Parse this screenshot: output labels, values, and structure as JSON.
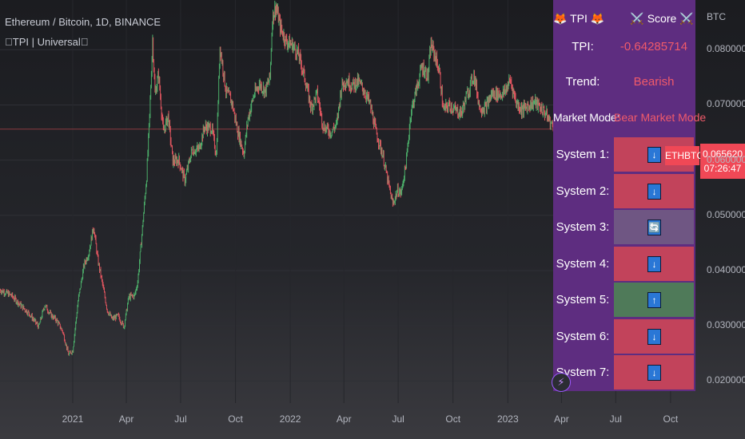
{
  "header": {
    "title": "Ethereum / Bitcoin, 1D, BINANCE",
    "indicator": "\u0000TPI | Universal\u0000"
  },
  "panel": {
    "head_left": "🦊 TPI 🦊",
    "head_right": "⚔️ Score ⚔️",
    "tpi_label": "TPI:",
    "tpi_value": "-0.64285714",
    "trend_label": "Trend:",
    "trend_value": "Bearish",
    "mode_label": "Market Mode:",
    "mode_value": "Bear Market Mode",
    "systems": [
      {
        "label": "System 1:",
        "signal": "↓",
        "state": "bear"
      },
      {
        "label": "System 2:",
        "signal": "↓",
        "state": "bear"
      },
      {
        "label": "System 3:",
        "signal": "🔄",
        "state": "neutral"
      },
      {
        "label": "System 4:",
        "signal": "↓",
        "state": "bear"
      },
      {
        "label": "System 5:",
        "signal": "↑",
        "state": "bull"
      },
      {
        "label": "System 6:",
        "signal": "↓",
        "state": "bear"
      },
      {
        "label": "System 7:",
        "signal": "↓",
        "state": "bear"
      }
    ],
    "colors": {
      "bg": "#5e2d80",
      "bear": "#c2435b",
      "bull": "#4f7a59",
      "neutral": "#6f5683",
      "bear_text": "#f05a6a"
    }
  },
  "price_badge": {
    "symbol": "ETHBTC",
    "price": "0.065620",
    "countdown": "07:26:47"
  },
  "chart_data": {
    "type": "line",
    "title": "Ethereum / Bitcoin, 1D, BINANCE",
    "ylabel": "BTC",
    "ylim": [
      0.016,
      0.089
    ],
    "x_range": [
      "2020-09-01",
      "2023-11-01"
    ],
    "y_ticks": [
      "0.080000",
      "0.070000",
      "0.060000",
      "0.050000",
      "0.040000",
      "0.030000",
      "0.020000"
    ],
    "y_tick_values": [
      0.08,
      0.07,
      0.06,
      0.05,
      0.04,
      0.03,
      0.02
    ],
    "x_ticks": [
      {
        "label": "2021",
        "date": "2021-01-01"
      },
      {
        "label": "Apr",
        "date": "2021-04-01"
      },
      {
        "label": "Jul",
        "date": "2021-07-01"
      },
      {
        "label": "Oct",
        "date": "2021-10-01"
      },
      {
        "label": "2022",
        "date": "2022-01-01"
      },
      {
        "label": "Apr",
        "date": "2022-04-01"
      },
      {
        "label": "Jul",
        "date": "2022-07-01"
      },
      {
        "label": "Oct",
        "date": "2022-10-01"
      },
      {
        "label": "2023",
        "date": "2023-01-01"
      },
      {
        "label": "Apr",
        "date": "2023-04-01"
      },
      {
        "label": "Jul",
        "date": "2023-07-01"
      },
      {
        "label": "Oct",
        "date": "2023-10-01"
      }
    ],
    "current_price": 0.06562,
    "series": [
      {
        "points": [
          [
            "2020-09-01",
            0.0365
          ],
          [
            "2020-09-20",
            0.0355
          ],
          [
            "2020-10-05",
            0.0338
          ],
          [
            "2020-10-20",
            0.0322
          ],
          [
            "2020-11-05",
            0.0298
          ],
          [
            "2020-11-15",
            0.0338
          ],
          [
            "2020-11-25",
            0.032
          ],
          [
            "2020-12-05",
            0.031
          ],
          [
            "2020-12-15",
            0.029
          ],
          [
            "2020-12-25",
            0.0248
          ],
          [
            "2021-01-01",
            0.0255
          ],
          [
            "2021-01-10",
            0.0345
          ],
          [
            "2021-01-20",
            0.041
          ],
          [
            "2021-01-28",
            0.0432
          ],
          [
            "2021-02-05",
            0.048
          ],
          [
            "2021-02-12",
            0.042
          ],
          [
            "2021-02-20",
            0.0375
          ],
          [
            "2021-02-28",
            0.0328
          ],
          [
            "2021-03-08",
            0.0312
          ],
          [
            "2021-03-18",
            0.0318
          ],
          [
            "2021-03-28",
            0.0298
          ],
          [
            "2021-04-05",
            0.0352
          ],
          [
            "2021-04-15",
            0.0355
          ],
          [
            "2021-04-20",
            0.038
          ],
          [
            "2021-04-27",
            0.0465
          ],
          [
            "2021-05-05",
            0.057
          ],
          [
            "2021-05-10",
            0.068
          ],
          [
            "2021-05-15",
            0.0818
          ],
          [
            "2021-05-19",
            0.072
          ],
          [
            "2021-05-25",
            0.0755
          ],
          [
            "2021-06-02",
            0.065
          ],
          [
            "2021-06-10",
            0.068
          ],
          [
            "2021-06-18",
            0.0598
          ],
          [
            "2021-06-28",
            0.06
          ],
          [
            "2021-07-08",
            0.0563
          ],
          [
            "2021-07-20",
            0.0618
          ],
          [
            "2021-08-01",
            0.062
          ],
          [
            "2021-08-10",
            0.066
          ],
          [
            "2021-08-22",
            0.0658
          ],
          [
            "2021-08-30",
            0.061
          ],
          [
            "2021-09-05",
            0.0808
          ],
          [
            "2021-09-15",
            0.0725
          ],
          [
            "2021-09-25",
            0.0705
          ],
          [
            "2021-10-05",
            0.0652
          ],
          [
            "2021-10-15",
            0.0612
          ],
          [
            "2021-10-22",
            0.0675
          ],
          [
            "2021-11-01",
            0.0718
          ],
          [
            "2021-11-10",
            0.0738
          ],
          [
            "2021-11-20",
            0.0725
          ],
          [
            "2021-11-28",
            0.075
          ],
          [
            "2021-12-02",
            0.0858
          ],
          [
            "2021-12-08",
            0.0878
          ],
          [
            "2021-12-15",
            0.0842
          ],
          [
            "2021-12-25",
            0.0815
          ],
          [
            "2022-01-05",
            0.0808
          ],
          [
            "2022-01-15",
            0.079
          ],
          [
            "2022-01-25",
            0.075
          ],
          [
            "2022-02-05",
            0.0695
          ],
          [
            "2022-02-15",
            0.072
          ],
          [
            "2022-02-25",
            0.0662
          ],
          [
            "2022-03-10",
            0.065
          ],
          [
            "2022-03-20",
            0.0665
          ],
          [
            "2022-03-28",
            0.0735
          ],
          [
            "2022-04-05",
            0.0745
          ],
          [
            "2022-04-15",
            0.0735
          ],
          [
            "2022-04-25",
            0.0742
          ],
          [
            "2022-05-05",
            0.0726
          ],
          [
            "2022-05-15",
            0.07
          ],
          [
            "2022-05-25",
            0.065
          ],
          [
            "2022-06-05",
            0.061
          ],
          [
            "2022-06-15",
            0.0555
          ],
          [
            "2022-06-22",
            0.052
          ],
          [
            "2022-06-30",
            0.0545
          ],
          [
            "2022-07-06",
            0.054
          ],
          [
            "2022-07-15",
            0.06
          ],
          [
            "2022-07-22",
            0.0685
          ],
          [
            "2022-08-01",
            0.073
          ],
          [
            "2022-08-10",
            0.077
          ],
          [
            "2022-08-20",
            0.0752
          ],
          [
            "2022-08-25",
            0.081
          ],
          [
            "2022-09-01",
            0.0788
          ],
          [
            "2022-09-08",
            0.076
          ],
          [
            "2022-09-15",
            0.069
          ],
          [
            "2022-09-25",
            0.07
          ],
          [
            "2022-10-05",
            0.069
          ],
          [
            "2022-10-15",
            0.0685
          ],
          [
            "2022-10-25",
            0.072
          ],
          [
            "2022-11-05",
            0.0755
          ],
          [
            "2022-11-15",
            0.0695
          ],
          [
            "2022-11-25",
            0.0695
          ],
          [
            "2022-12-05",
            0.072
          ],
          [
            "2022-12-15",
            0.072
          ],
          [
            "2022-12-25",
            0.072
          ],
          [
            "2023-01-05",
            0.0745
          ],
          [
            "2023-01-15",
            0.0705
          ],
          [
            "2023-01-25",
            0.069
          ],
          [
            "2023-02-05",
            0.07
          ],
          [
            "2023-02-15",
            0.0705
          ],
          [
            "2023-02-25",
            0.0695
          ],
          [
            "2023-03-05",
            0.0685
          ],
          [
            "2023-03-15",
            0.0665
          ],
          [
            "2023-03-22",
            0.0656
          ]
        ]
      }
    ]
  }
}
